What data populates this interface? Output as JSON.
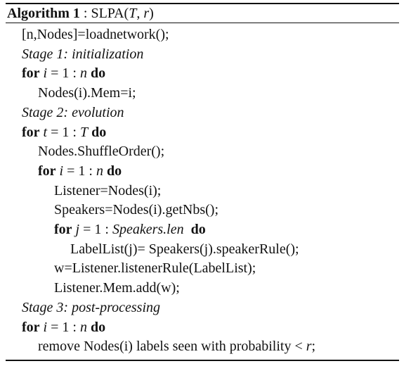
{
  "algorithm": {
    "label": "Algorithm 1",
    "sep": " : ",
    "name": "SLPA(",
    "param_t": "T",
    "comma": ", ",
    "param_r": "r",
    "close": ")"
  },
  "lines": [
    {
      "indent": 0,
      "parts": [
        {
          "t": "[n,Nodes]=loadnetwork();"
        }
      ]
    },
    {
      "indent": 0,
      "parts": [
        {
          "t": "Stage 1: initialization",
          "s": "it"
        }
      ]
    },
    {
      "indent": 0,
      "parts": [
        {
          "t": "for",
          "s": "kw"
        },
        {
          "t": " "
        },
        {
          "t": "i",
          "s": "it"
        },
        {
          "t": " = 1 : "
        },
        {
          "t": "n",
          "s": "it"
        },
        {
          "t": " "
        },
        {
          "t": "do",
          "s": "kw"
        }
      ]
    },
    {
      "indent": 1,
      "parts": [
        {
          "t": "Nodes(i).Mem=i;"
        }
      ]
    },
    {
      "indent": 0,
      "parts": [
        {
          "t": "Stage 2: evolution",
          "s": "it"
        }
      ]
    },
    {
      "indent": 0,
      "parts": [
        {
          "t": "for",
          "s": "kw"
        },
        {
          "t": " "
        },
        {
          "t": "t",
          "s": "it"
        },
        {
          "t": " = 1 : "
        },
        {
          "t": "T",
          "s": "it"
        },
        {
          "t": " "
        },
        {
          "t": "do",
          "s": "kw"
        }
      ]
    },
    {
      "indent": 1,
      "parts": [
        {
          "t": "Nodes.ShuffleOrder();"
        }
      ]
    },
    {
      "indent": 1,
      "parts": [
        {
          "t": "for",
          "s": "kw"
        },
        {
          "t": " "
        },
        {
          "t": "i",
          "s": "it"
        },
        {
          "t": " = 1 : "
        },
        {
          "t": "n",
          "s": "it"
        },
        {
          "t": " "
        },
        {
          "t": "do",
          "s": "kw"
        }
      ]
    },
    {
      "indent": 2,
      "parts": [
        {
          "t": "Listener=Nodes(i);"
        }
      ]
    },
    {
      "indent": 2,
      "parts": [
        {
          "t": "Speakers=Nodes(i).getNbs();"
        }
      ]
    },
    {
      "indent": 2,
      "parts": [
        {
          "t": "for",
          "s": "kw"
        },
        {
          "t": " "
        },
        {
          "t": "j",
          "s": "it"
        },
        {
          "t": " = 1 : "
        },
        {
          "t": "Speakers.len",
          "s": "it"
        },
        {
          "t": "  "
        },
        {
          "t": "do",
          "s": "kw"
        }
      ]
    },
    {
      "indent": 3,
      "parts": [
        {
          "t": "LabelList(j)= Speakers(j).speakerRule();"
        }
      ]
    },
    {
      "indent": 2,
      "parts": [
        {
          "t": "w=Listener.listenerRule(LabelList);"
        }
      ]
    },
    {
      "indent": 2,
      "parts": [
        {
          "t": "Listener.Mem.add(w);"
        }
      ]
    },
    {
      "indent": 0,
      "parts": [
        {
          "t": "Stage 3: post-processing",
          "s": "it"
        }
      ]
    },
    {
      "indent": 0,
      "parts": [
        {
          "t": "for",
          "s": "kw"
        },
        {
          "t": " "
        },
        {
          "t": "i",
          "s": "it"
        },
        {
          "t": " = 1 : "
        },
        {
          "t": "n",
          "s": "it"
        },
        {
          "t": " "
        },
        {
          "t": "do",
          "s": "kw"
        }
      ]
    },
    {
      "indent": 1,
      "parts": [
        {
          "t": "remove Nodes(i) labels seen with probability < "
        },
        {
          "t": "r",
          "s": "it"
        },
        {
          "t": ";"
        }
      ]
    }
  ]
}
